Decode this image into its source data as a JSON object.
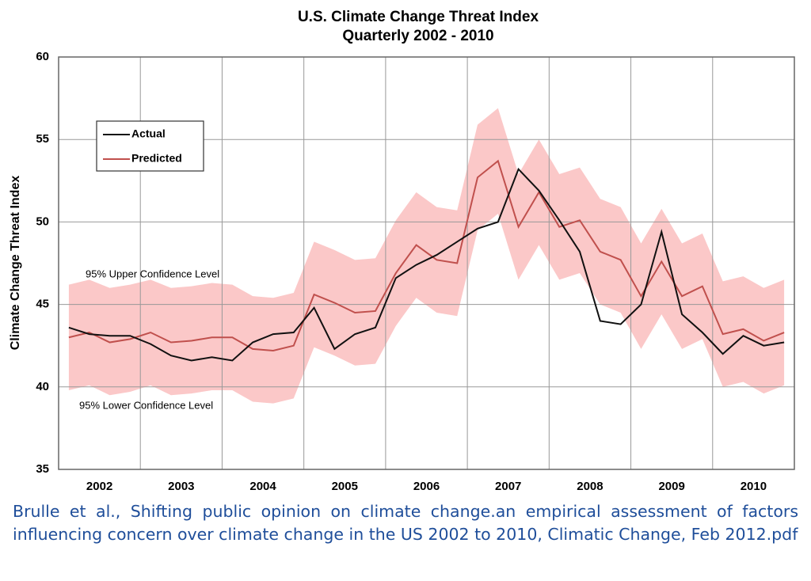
{
  "chart_data": {
    "type": "line",
    "title": "U.S. Climate Change Threat Index",
    "subtitle": "Quarterly 2002 - 2010",
    "y_label": "Climate Change Threat Index",
    "categories": [
      "2002",
      null,
      null,
      null,
      "2003",
      null,
      null,
      null,
      "2004",
      null,
      null,
      null,
      "2005",
      null,
      null,
      null,
      "2006",
      null,
      null,
      null,
      "2007",
      null,
      null,
      null,
      "2008",
      null,
      null,
      null,
      "2009",
      null,
      null,
      null,
      "2010",
      null,
      null,
      null
    ],
    "series": [
      {
        "name": "Actual",
        "color": "#111111",
        "values": [
          43.6,
          43.2,
          43.1,
          43.1,
          42.6,
          41.9,
          41.6,
          41.8,
          41.6,
          42.7,
          43.2,
          43.3,
          44.8,
          42.3,
          43.2,
          43.6,
          46.6,
          47.4,
          48.0,
          48.8,
          49.6,
          50.0,
          53.2,
          51.9,
          50.1,
          48.2,
          44.0,
          43.8,
          45.0,
          49.4,
          44.4,
          43.3,
          42.0,
          43.1,
          42.5,
          42.7
        ]
      },
      {
        "name": "Predicted",
        "color": "#c0504d",
        "values": [
          43.0,
          43.3,
          42.7,
          42.9,
          43.3,
          42.7,
          42.8,
          43.0,
          43.0,
          42.3,
          42.2,
          42.5,
          45.6,
          45.1,
          44.5,
          44.6,
          46.9,
          48.6,
          47.7,
          47.5,
          52.7,
          53.7,
          49.7,
          51.8,
          49.7,
          50.1,
          48.2,
          47.7,
          45.5,
          47.6,
          45.5,
          46.1,
          43.2,
          43.5,
          42.8,
          43.3
        ]
      }
    ],
    "band": {
      "color": "#fbc8c8",
      "upper": [
        46.2,
        46.5,
        46.0,
        46.2,
        46.5,
        46.0,
        46.1,
        46.3,
        46.2,
        45.5,
        45.4,
        45.7,
        48.8,
        48.3,
        47.7,
        47.8,
        50.1,
        51.8,
        50.9,
        50.7,
        55.9,
        56.9,
        52.9,
        55.0,
        52.9,
        53.3,
        51.4,
        50.9,
        48.7,
        50.8,
        48.7,
        49.3,
        46.4,
        46.7,
        46.0,
        46.5
      ],
      "lower": [
        39.8,
        40.1,
        39.5,
        39.7,
        40.1,
        39.5,
        39.6,
        39.8,
        39.8,
        39.1,
        39.0,
        39.3,
        42.4,
        41.9,
        41.3,
        41.4,
        43.7,
        45.4,
        44.5,
        44.3,
        49.5,
        50.5,
        46.5,
        48.6,
        46.5,
        46.9,
        45.0,
        44.5,
        42.3,
        44.4,
        42.3,
        42.9,
        40.0,
        40.3,
        39.6,
        40.1
      ]
    },
    "annotations": [
      "95% Upper Confidence Level",
      "95% Lower Confidence Level"
    ],
    "ylim": [
      35,
      60
    ],
    "yticks": [
      35,
      40,
      45,
      50,
      55,
      60
    ],
    "grid": true,
    "legend": "upper left",
    "caption": "Brulle et al., Shifting public opinion on climate change.an empirical assessment of factors influencing concern over climate change in the US 2002 to 2010, Climatic Change, Feb 2012.pdf"
  }
}
